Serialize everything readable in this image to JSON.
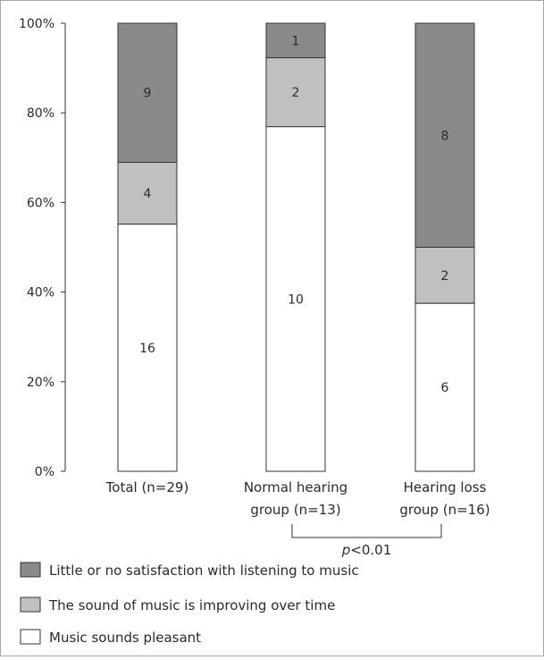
{
  "chart_data": {
    "type": "bar",
    "stacked": true,
    "percent_stacked": true,
    "categories": [
      {
        "line1": "Total (n=29)",
        "line2": ""
      },
      {
        "line1": "Normal hearing",
        "line2": "group (n=13)"
      },
      {
        "line1": "Hearing loss",
        "line2": "group (n=16)"
      }
    ],
    "series": [
      {
        "name": "Music sounds pleasant",
        "values": [
          16,
          10,
          6
        ],
        "color": "#ffffff"
      },
      {
        "name": "The sound of music is improving over time",
        "values": [
          4,
          2,
          2
        ],
        "color": "#c0c0c2"
      },
      {
        "name": "Little or no satisfaction with listening to music",
        "values": [
          9,
          1,
          8
        ],
        "color": "#8a8a8c"
      }
    ],
    "y_ticks": [
      "0%",
      "20%",
      "40%",
      "60%",
      "80%",
      "100%"
    ],
    "ylim": [
      0,
      100
    ],
    "grid": false,
    "legend_position": "bottom-left",
    "legend_order": [
      2,
      1,
      0
    ],
    "annotations": {
      "significance": {
        "italic": "p",
        "text": "<0.01",
        "between": [
          1,
          2
        ]
      }
    }
  }
}
